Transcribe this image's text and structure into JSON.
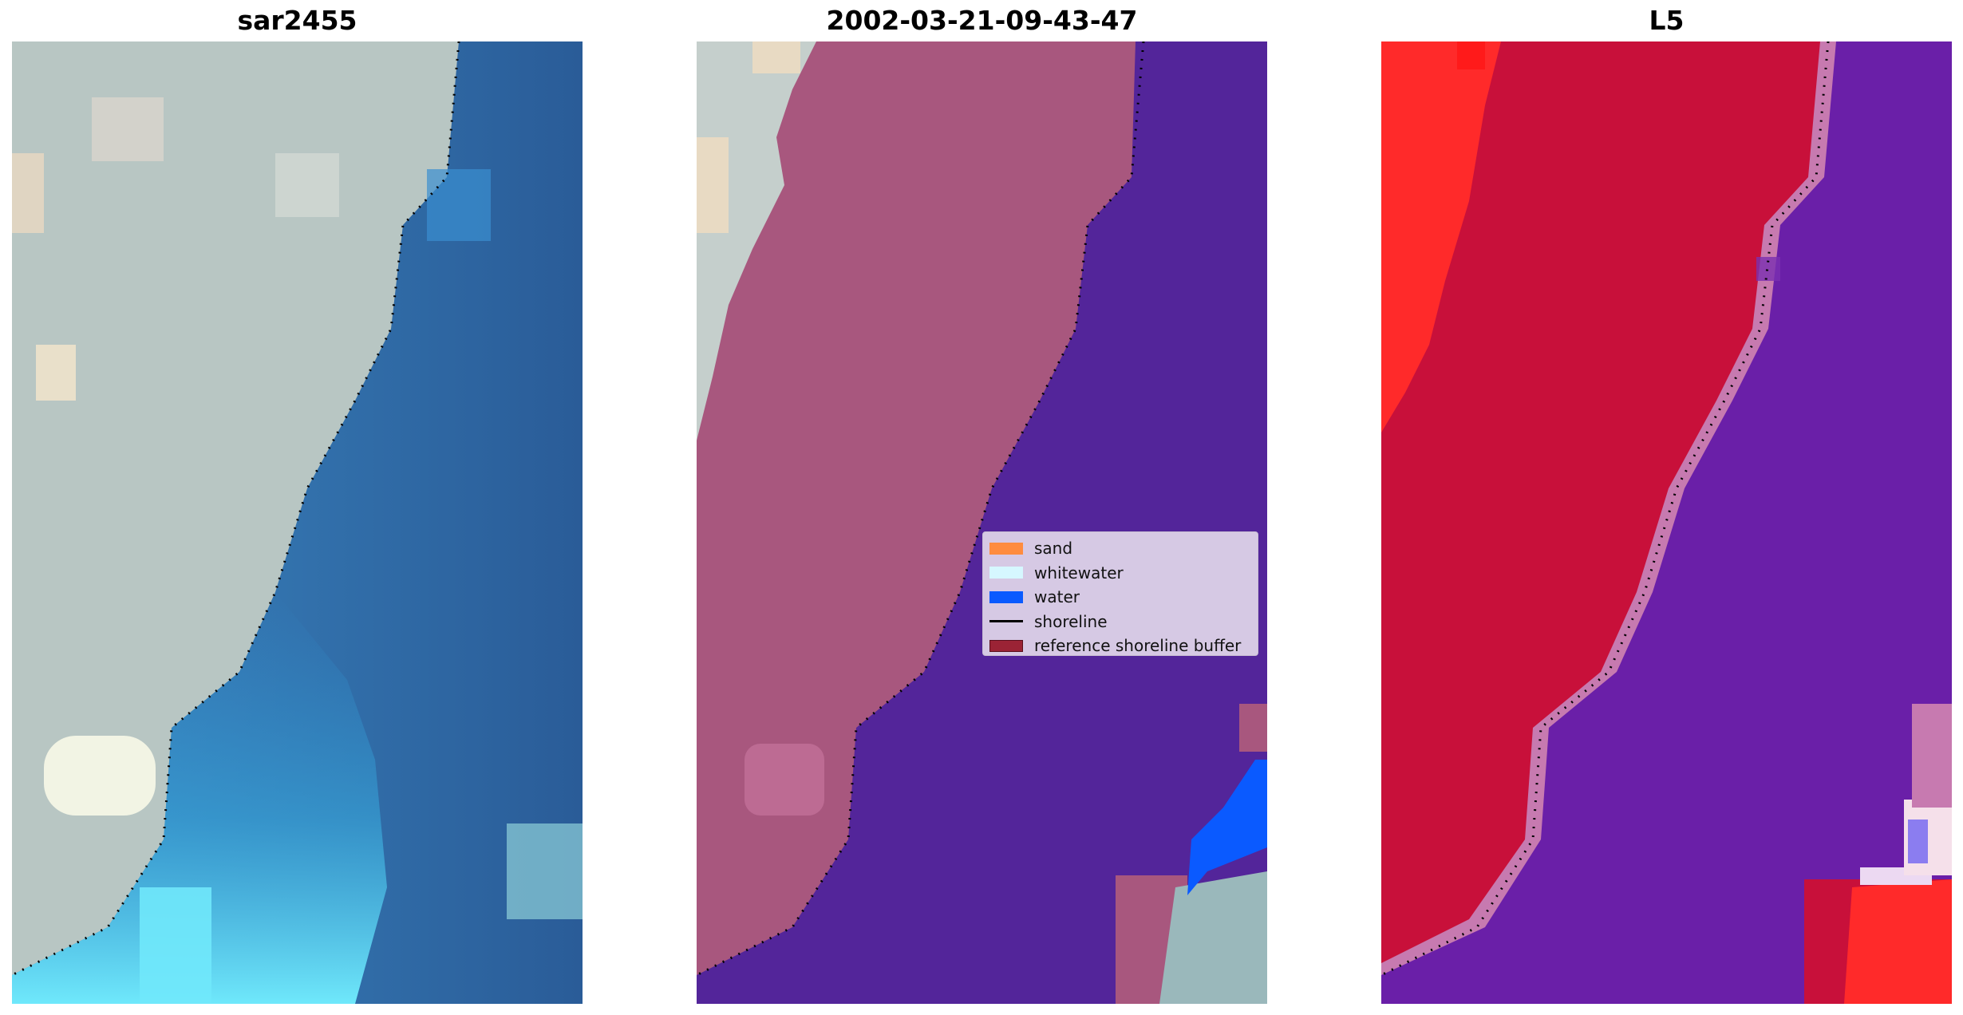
{
  "titles": [
    "sar2455",
    "2002-03-21-09-43-47",
    "L5"
  ],
  "legend": [
    {
      "label": "sand",
      "kind": "patch",
      "color": "#ff8c3f"
    },
    {
      "label": "whitewater",
      "kind": "patch",
      "color": "#d6f7ff"
    },
    {
      "label": "water",
      "kind": "patch",
      "color": "#0a5aff"
    },
    {
      "label": "shoreline",
      "kind": "line",
      "color": "#000000"
    },
    {
      "label": "reference shoreline buffer",
      "kind": "patch",
      "color": "#9b2335"
    }
  ],
  "colors": {
    "water_class": "#53259a",
    "land_overlay": "#a8577e",
    "land_prob": "#c8103a",
    "water_prob": "#6a1fa8",
    "sand_prob": "#ff2a2a",
    "sea": "#2f6ea8",
    "beach": "#c4cdc8",
    "surf": "#6ee8f8",
    "shoreline": "#000000"
  }
}
